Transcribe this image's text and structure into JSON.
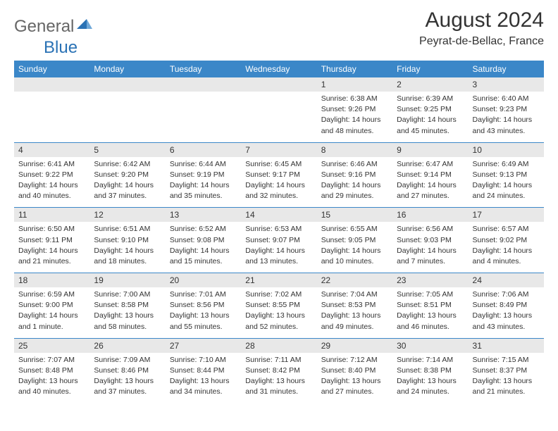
{
  "logo": {
    "part1": "General",
    "part2": "Blue"
  },
  "title": "August 2024",
  "location": "Peyrat-de-Bellac, France",
  "colors": {
    "header_bg": "#3b87c8",
    "header_text": "#ffffff",
    "daynum_bg": "#e8e8e8",
    "text": "#333333",
    "logo_gray": "#666666",
    "logo_blue": "#2a72b5"
  },
  "day_headers": [
    "Sunday",
    "Monday",
    "Tuesday",
    "Wednesday",
    "Thursday",
    "Friday",
    "Saturday"
  ],
  "weeks": [
    {
      "nums": [
        "",
        "",
        "",
        "",
        "1",
        "2",
        "3"
      ],
      "cells": [
        null,
        null,
        null,
        null,
        {
          "sunrise": "Sunrise: 6:38 AM",
          "sunset": "Sunset: 9:26 PM",
          "day1": "Daylight: 14 hours",
          "day2": "and 48 minutes."
        },
        {
          "sunrise": "Sunrise: 6:39 AM",
          "sunset": "Sunset: 9:25 PM",
          "day1": "Daylight: 14 hours",
          "day2": "and 45 minutes."
        },
        {
          "sunrise": "Sunrise: 6:40 AM",
          "sunset": "Sunset: 9:23 PM",
          "day1": "Daylight: 14 hours",
          "day2": "and 43 minutes."
        }
      ]
    },
    {
      "nums": [
        "4",
        "5",
        "6",
        "7",
        "8",
        "9",
        "10"
      ],
      "cells": [
        {
          "sunrise": "Sunrise: 6:41 AM",
          "sunset": "Sunset: 9:22 PM",
          "day1": "Daylight: 14 hours",
          "day2": "and 40 minutes."
        },
        {
          "sunrise": "Sunrise: 6:42 AM",
          "sunset": "Sunset: 9:20 PM",
          "day1": "Daylight: 14 hours",
          "day2": "and 37 minutes."
        },
        {
          "sunrise": "Sunrise: 6:44 AM",
          "sunset": "Sunset: 9:19 PM",
          "day1": "Daylight: 14 hours",
          "day2": "and 35 minutes."
        },
        {
          "sunrise": "Sunrise: 6:45 AM",
          "sunset": "Sunset: 9:17 PM",
          "day1": "Daylight: 14 hours",
          "day2": "and 32 minutes."
        },
        {
          "sunrise": "Sunrise: 6:46 AM",
          "sunset": "Sunset: 9:16 PM",
          "day1": "Daylight: 14 hours",
          "day2": "and 29 minutes."
        },
        {
          "sunrise": "Sunrise: 6:47 AM",
          "sunset": "Sunset: 9:14 PM",
          "day1": "Daylight: 14 hours",
          "day2": "and 27 minutes."
        },
        {
          "sunrise": "Sunrise: 6:49 AM",
          "sunset": "Sunset: 9:13 PM",
          "day1": "Daylight: 14 hours",
          "day2": "and 24 minutes."
        }
      ]
    },
    {
      "nums": [
        "11",
        "12",
        "13",
        "14",
        "15",
        "16",
        "17"
      ],
      "cells": [
        {
          "sunrise": "Sunrise: 6:50 AM",
          "sunset": "Sunset: 9:11 PM",
          "day1": "Daylight: 14 hours",
          "day2": "and 21 minutes."
        },
        {
          "sunrise": "Sunrise: 6:51 AM",
          "sunset": "Sunset: 9:10 PM",
          "day1": "Daylight: 14 hours",
          "day2": "and 18 minutes."
        },
        {
          "sunrise": "Sunrise: 6:52 AM",
          "sunset": "Sunset: 9:08 PM",
          "day1": "Daylight: 14 hours",
          "day2": "and 15 minutes."
        },
        {
          "sunrise": "Sunrise: 6:53 AM",
          "sunset": "Sunset: 9:07 PM",
          "day1": "Daylight: 14 hours",
          "day2": "and 13 minutes."
        },
        {
          "sunrise": "Sunrise: 6:55 AM",
          "sunset": "Sunset: 9:05 PM",
          "day1": "Daylight: 14 hours",
          "day2": "and 10 minutes."
        },
        {
          "sunrise": "Sunrise: 6:56 AM",
          "sunset": "Sunset: 9:03 PM",
          "day1": "Daylight: 14 hours",
          "day2": "and 7 minutes."
        },
        {
          "sunrise": "Sunrise: 6:57 AM",
          "sunset": "Sunset: 9:02 PM",
          "day1": "Daylight: 14 hours",
          "day2": "and 4 minutes."
        }
      ]
    },
    {
      "nums": [
        "18",
        "19",
        "20",
        "21",
        "22",
        "23",
        "24"
      ],
      "cells": [
        {
          "sunrise": "Sunrise: 6:59 AM",
          "sunset": "Sunset: 9:00 PM",
          "day1": "Daylight: 14 hours",
          "day2": "and 1 minute."
        },
        {
          "sunrise": "Sunrise: 7:00 AM",
          "sunset": "Sunset: 8:58 PM",
          "day1": "Daylight: 13 hours",
          "day2": "and 58 minutes."
        },
        {
          "sunrise": "Sunrise: 7:01 AM",
          "sunset": "Sunset: 8:56 PM",
          "day1": "Daylight: 13 hours",
          "day2": "and 55 minutes."
        },
        {
          "sunrise": "Sunrise: 7:02 AM",
          "sunset": "Sunset: 8:55 PM",
          "day1": "Daylight: 13 hours",
          "day2": "and 52 minutes."
        },
        {
          "sunrise": "Sunrise: 7:04 AM",
          "sunset": "Sunset: 8:53 PM",
          "day1": "Daylight: 13 hours",
          "day2": "and 49 minutes."
        },
        {
          "sunrise": "Sunrise: 7:05 AM",
          "sunset": "Sunset: 8:51 PM",
          "day1": "Daylight: 13 hours",
          "day2": "and 46 minutes."
        },
        {
          "sunrise": "Sunrise: 7:06 AM",
          "sunset": "Sunset: 8:49 PM",
          "day1": "Daylight: 13 hours",
          "day2": "and 43 minutes."
        }
      ]
    },
    {
      "nums": [
        "25",
        "26",
        "27",
        "28",
        "29",
        "30",
        "31"
      ],
      "cells": [
        {
          "sunrise": "Sunrise: 7:07 AM",
          "sunset": "Sunset: 8:48 PM",
          "day1": "Daylight: 13 hours",
          "day2": "and 40 minutes."
        },
        {
          "sunrise": "Sunrise: 7:09 AM",
          "sunset": "Sunset: 8:46 PM",
          "day1": "Daylight: 13 hours",
          "day2": "and 37 minutes."
        },
        {
          "sunrise": "Sunrise: 7:10 AM",
          "sunset": "Sunset: 8:44 PM",
          "day1": "Daylight: 13 hours",
          "day2": "and 34 minutes."
        },
        {
          "sunrise": "Sunrise: 7:11 AM",
          "sunset": "Sunset: 8:42 PM",
          "day1": "Daylight: 13 hours",
          "day2": "and 31 minutes."
        },
        {
          "sunrise": "Sunrise: 7:12 AM",
          "sunset": "Sunset: 8:40 PM",
          "day1": "Daylight: 13 hours",
          "day2": "and 27 minutes."
        },
        {
          "sunrise": "Sunrise: 7:14 AM",
          "sunset": "Sunset: 8:38 PM",
          "day1": "Daylight: 13 hours",
          "day2": "and 24 minutes."
        },
        {
          "sunrise": "Sunrise: 7:15 AM",
          "sunset": "Sunset: 8:37 PM",
          "day1": "Daylight: 13 hours",
          "day2": "and 21 minutes."
        }
      ]
    }
  ]
}
